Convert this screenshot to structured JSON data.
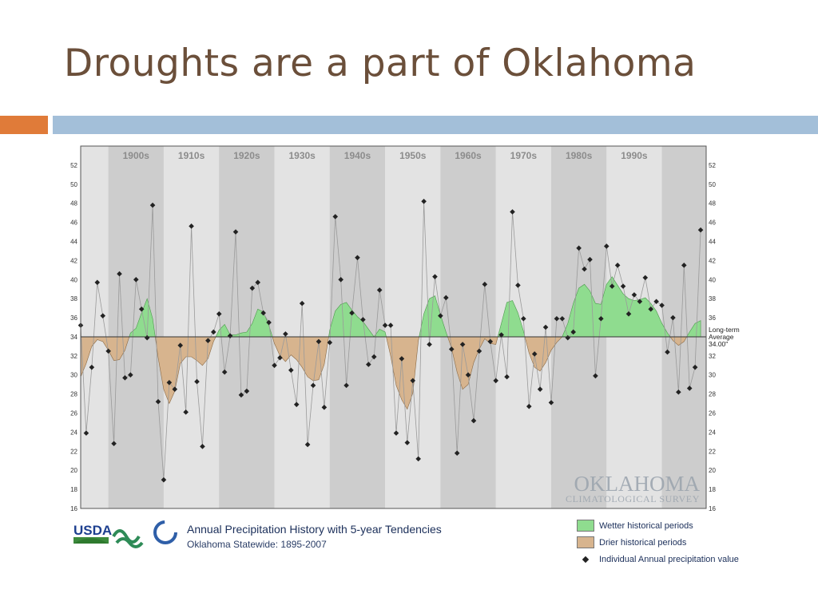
{
  "slide": {
    "title": "Droughts are a part of Oklahoma"
  },
  "colors": {
    "wet": "#8fdc8f",
    "dry": "#d7b48e",
    "title": "#6b4f3a",
    "accent": "#e07b39",
    "rule": "#a3bfd9",
    "text_blue": "#1b2f5a"
  },
  "branding": {
    "usda": "USDA",
    "ocs": "OKLAHOMA",
    "ocs_sub": "CLIMATOLOGICAL SURVEY"
  },
  "chart_data": {
    "type": "line",
    "title": "Annual Precipitation History with 5-year Tendencies",
    "subtitle": "Oklahoma Statewide:  1895-2007",
    "ylim": [
      16,
      54
    ],
    "ytick_step": 2,
    "xlim": [
      1895,
      2008
    ],
    "grid": false,
    "decades": [
      "1900s",
      "1910s",
      "1920s",
      "1930s",
      "1940s",
      "1950s",
      "1960s",
      "1970s",
      "1980s",
      "1990s"
    ],
    "baseline": {
      "value": 34.0,
      "label_line1": "Long-term",
      "label_line2": "Average",
      "label_value": "34.00\""
    },
    "legend": {
      "placement": "bottom-right",
      "wet": "Wetter historical periods",
      "dry": "Drier historical periods",
      "points": "Individual Annual precipitation value"
    },
    "annual": [
      {
        "x": 1895,
        "y": 35.2
      },
      {
        "x": 1896,
        "y": 23.9
      },
      {
        "x": 1897,
        "y": 30.8
      },
      {
        "x": 1898,
        "y": 39.7
      },
      {
        "x": 1899,
        "y": 36.2
      },
      {
        "x": 1900,
        "y": 32.5
      },
      {
        "x": 1901,
        "y": 22.8
      },
      {
        "x": 1902,
        "y": 40.6
      },
      {
        "x": 1903,
        "y": 29.7
      },
      {
        "x": 1904,
        "y": 30.0
      },
      {
        "x": 1905,
        "y": 40.0
      },
      {
        "x": 1906,
        "y": 36.9
      },
      {
        "x": 1907,
        "y": 33.9
      },
      {
        "x": 1908,
        "y": 47.8
      },
      {
        "x": 1909,
        "y": 27.2
      },
      {
        "x": 1910,
        "y": 19.0
      },
      {
        "x": 1911,
        "y": 29.2
      },
      {
        "x": 1912,
        "y": 28.5
      },
      {
        "x": 1913,
        "y": 33.1
      },
      {
        "x": 1914,
        "y": 26.1
      },
      {
        "x": 1915,
        "y": 45.6
      },
      {
        "x": 1916,
        "y": 29.3
      },
      {
        "x": 1917,
        "y": 22.5
      },
      {
        "x": 1918,
        "y": 33.6
      },
      {
        "x": 1919,
        "y": 34.5
      },
      {
        "x": 1920,
        "y": 36.4
      },
      {
        "x": 1921,
        "y": 30.3
      },
      {
        "x": 1922,
        "y": 34.1
      },
      {
        "x": 1923,
        "y": 45.0
      },
      {
        "x": 1924,
        "y": 27.9
      },
      {
        "x": 1925,
        "y": 28.3
      },
      {
        "x": 1926,
        "y": 39.1
      },
      {
        "x": 1927,
        "y": 39.7
      },
      {
        "x": 1928,
        "y": 36.5
      },
      {
        "x": 1929,
        "y": 35.5
      },
      {
        "x": 1930,
        "y": 31.0
      },
      {
        "x": 1931,
        "y": 31.8
      },
      {
        "x": 1932,
        "y": 34.3
      },
      {
        "x": 1933,
        "y": 30.5
      },
      {
        "x": 1934,
        "y": 26.9
      },
      {
        "x": 1935,
        "y": 37.5
      },
      {
        "x": 1936,
        "y": 22.7
      },
      {
        "x": 1937,
        "y": 28.9
      },
      {
        "x": 1938,
        "y": 33.5
      },
      {
        "x": 1939,
        "y": 26.6
      },
      {
        "x": 1940,
        "y": 33.4
      },
      {
        "x": 1941,
        "y": 46.6
      },
      {
        "x": 1942,
        "y": 40.0
      },
      {
        "x": 1943,
        "y": 28.9
      },
      {
        "x": 1944,
        "y": 36.5
      },
      {
        "x": 1945,
        "y": 42.3
      },
      {
        "x": 1946,
        "y": 35.8
      },
      {
        "x": 1947,
        "y": 31.1
      },
      {
        "x": 1948,
        "y": 31.9
      },
      {
        "x": 1949,
        "y": 38.9
      },
      {
        "x": 1950,
        "y": 35.2
      },
      {
        "x": 1951,
        "y": 35.2
      },
      {
        "x": 1952,
        "y": 23.9
      },
      {
        "x": 1953,
        "y": 31.7
      },
      {
        "x": 1954,
        "y": 22.9
      },
      {
        "x": 1955,
        "y": 29.4
      },
      {
        "x": 1956,
        "y": 21.2
      },
      {
        "x": 1957,
        "y": 48.2
      },
      {
        "x": 1958,
        "y": 33.2
      },
      {
        "x": 1959,
        "y": 40.3
      },
      {
        "x": 1960,
        "y": 36.2
      },
      {
        "x": 1961,
        "y": 38.1
      },
      {
        "x": 1962,
        "y": 32.7
      },
      {
        "x": 1963,
        "y": 21.8
      },
      {
        "x": 1964,
        "y": 33.2
      },
      {
        "x": 1965,
        "y": 30.0
      },
      {
        "x": 1966,
        "y": 25.2
      },
      {
        "x": 1967,
        "y": 32.5
      },
      {
        "x": 1968,
        "y": 39.5
      },
      {
        "x": 1969,
        "y": 33.5
      },
      {
        "x": 1970,
        "y": 29.4
      },
      {
        "x": 1971,
        "y": 34.2
      },
      {
        "x": 1972,
        "y": 29.8
      },
      {
        "x": 1973,
        "y": 47.1
      },
      {
        "x": 1974,
        "y": 39.4
      },
      {
        "x": 1975,
        "y": 35.9
      },
      {
        "x": 1976,
        "y": 26.7
      },
      {
        "x": 1977,
        "y": 32.2
      },
      {
        "x": 1978,
        "y": 28.5
      },
      {
        "x": 1979,
        "y": 35.0
      },
      {
        "x": 1980,
        "y": 27.1
      },
      {
        "x": 1981,
        "y": 35.9
      },
      {
        "x": 1982,
        "y": 35.9
      },
      {
        "x": 1983,
        "y": 33.9
      },
      {
        "x": 1984,
        "y": 34.5
      },
      {
        "x": 1985,
        "y": 43.3
      },
      {
        "x": 1986,
        "y": 41.1
      },
      {
        "x": 1987,
        "y": 42.1
      },
      {
        "x": 1988,
        "y": 29.9
      },
      {
        "x": 1989,
        "y": 35.9
      },
      {
        "x": 1990,
        "y": 43.5
      },
      {
        "x": 1991,
        "y": 39.3
      },
      {
        "x": 1992,
        "y": 41.5
      },
      {
        "x": 1993,
        "y": 39.3
      },
      {
        "x": 1994,
        "y": 36.4
      },
      {
        "x": 1995,
        "y": 38.4
      },
      {
        "x": 1996,
        "y": 37.7
      },
      {
        "x": 1997,
        "y": 40.2
      },
      {
        "x": 1998,
        "y": 36.9
      },
      {
        "x": 1999,
        "y": 37.7
      },
      {
        "x": 2000,
        "y": 37.3
      },
      {
        "x": 2001,
        "y": 32.4
      },
      {
        "x": 2002,
        "y": 36.0
      },
      {
        "x": 2003,
        "y": 28.2
      },
      {
        "x": 2004,
        "y": 41.5
      },
      {
        "x": 2005,
        "y": 28.6
      },
      {
        "x": 2006,
        "y": 30.8
      },
      {
        "x": 2007,
        "y": 45.2
      }
    ],
    "tendency": [
      {
        "x": 1895,
        "y": 29.8
      },
      {
        "x": 1896,
        "y": 31.2
      },
      {
        "x": 1897,
        "y": 33.0
      },
      {
        "x": 1898,
        "y": 33.7
      },
      {
        "x": 1899,
        "y": 33.5
      },
      {
        "x": 1900,
        "y": 32.6
      },
      {
        "x": 1901,
        "y": 31.5
      },
      {
        "x": 1902,
        "y": 31.6
      },
      {
        "x": 1903,
        "y": 32.6
      },
      {
        "x": 1904,
        "y": 34.4
      },
      {
        "x": 1905,
        "y": 34.9
      },
      {
        "x": 1906,
        "y": 36.5
      },
      {
        "x": 1907,
        "y": 38.0
      },
      {
        "x": 1908,
        "y": 35.9
      },
      {
        "x": 1909,
        "y": 31.8
      },
      {
        "x": 1910,
        "y": 28.5
      },
      {
        "x": 1911,
        "y": 27.0
      },
      {
        "x": 1912,
        "y": 28.3
      },
      {
        "x": 1913,
        "y": 31.2
      },
      {
        "x": 1914,
        "y": 31.9
      },
      {
        "x": 1915,
        "y": 31.9
      },
      {
        "x": 1916,
        "y": 31.5
      },
      {
        "x": 1917,
        "y": 31.0
      },
      {
        "x": 1918,
        "y": 31.7
      },
      {
        "x": 1919,
        "y": 33.5
      },
      {
        "x": 1920,
        "y": 34.7
      },
      {
        "x": 1921,
        "y": 35.3
      },
      {
        "x": 1922,
        "y": 34.2
      },
      {
        "x": 1923,
        "y": 34.2
      },
      {
        "x": 1924,
        "y": 34.4
      },
      {
        "x": 1925,
        "y": 34.5
      },
      {
        "x": 1926,
        "y": 35.4
      },
      {
        "x": 1927,
        "y": 36.9
      },
      {
        "x": 1928,
        "y": 36.6
      },
      {
        "x": 1929,
        "y": 35.2
      },
      {
        "x": 1930,
        "y": 33.3
      },
      {
        "x": 1931,
        "y": 32.0
      },
      {
        "x": 1932,
        "y": 31.4
      },
      {
        "x": 1933,
        "y": 32.1
      },
      {
        "x": 1934,
        "y": 31.6
      },
      {
        "x": 1935,
        "y": 30.8
      },
      {
        "x": 1936,
        "y": 29.8
      },
      {
        "x": 1937,
        "y": 29.4
      },
      {
        "x": 1938,
        "y": 29.5
      },
      {
        "x": 1939,
        "y": 31.1
      },
      {
        "x": 1940,
        "y": 34.7
      },
      {
        "x": 1941,
        "y": 36.7
      },
      {
        "x": 1942,
        "y": 37.4
      },
      {
        "x": 1943,
        "y": 37.6
      },
      {
        "x": 1944,
        "y": 36.8
      },
      {
        "x": 1945,
        "y": 36.1
      },
      {
        "x": 1946,
        "y": 35.6
      },
      {
        "x": 1947,
        "y": 34.8
      },
      {
        "x": 1948,
        "y": 34.0
      },
      {
        "x": 1949,
        "y": 34.8
      },
      {
        "x": 1950,
        "y": 34.5
      },
      {
        "x": 1951,
        "y": 32.0
      },
      {
        "x": 1952,
        "y": 28.9
      },
      {
        "x": 1953,
        "y": 27.4
      },
      {
        "x": 1954,
        "y": 26.4
      },
      {
        "x": 1955,
        "y": 28.1
      },
      {
        "x": 1956,
        "y": 33.6
      },
      {
        "x": 1957,
        "y": 36.4
      },
      {
        "x": 1958,
        "y": 38.0
      },
      {
        "x": 1959,
        "y": 38.3
      },
      {
        "x": 1960,
        "y": 36.3
      },
      {
        "x": 1961,
        "y": 34.5
      },
      {
        "x": 1962,
        "y": 32.8
      },
      {
        "x": 1963,
        "y": 30.3
      },
      {
        "x": 1964,
        "y": 28.5
      },
      {
        "x": 1965,
        "y": 29.0
      },
      {
        "x": 1966,
        "y": 31.3
      },
      {
        "x": 1967,
        "y": 32.7
      },
      {
        "x": 1968,
        "y": 33.8
      },
      {
        "x": 1969,
        "y": 33.3
      },
      {
        "x": 1970,
        "y": 33.2
      },
      {
        "x": 1971,
        "y": 35.4
      },
      {
        "x": 1972,
        "y": 37.6
      },
      {
        "x": 1973,
        "y": 37.8
      },
      {
        "x": 1974,
        "y": 36.5
      },
      {
        "x": 1975,
        "y": 34.6
      },
      {
        "x": 1976,
        "y": 32.3
      },
      {
        "x": 1977,
        "y": 30.8
      },
      {
        "x": 1978,
        "y": 30.4
      },
      {
        "x": 1979,
        "y": 31.3
      },
      {
        "x": 1980,
        "y": 32.6
      },
      {
        "x": 1981,
        "y": 33.4
      },
      {
        "x": 1982,
        "y": 34.0
      },
      {
        "x": 1983,
        "y": 35.4
      },
      {
        "x": 1984,
        "y": 37.5
      },
      {
        "x": 1985,
        "y": 39.1
      },
      {
        "x": 1986,
        "y": 39.5
      },
      {
        "x": 1987,
        "y": 38.8
      },
      {
        "x": 1988,
        "y": 37.5
      },
      {
        "x": 1989,
        "y": 37.4
      },
      {
        "x": 1990,
        "y": 39.5
      },
      {
        "x": 1991,
        "y": 40.3
      },
      {
        "x": 1992,
        "y": 39.4
      },
      {
        "x": 1993,
        "y": 38.5
      },
      {
        "x": 1994,
        "y": 38.0
      },
      {
        "x": 1995,
        "y": 37.8
      },
      {
        "x": 1996,
        "y": 37.9
      },
      {
        "x": 1997,
        "y": 38.1
      },
      {
        "x": 1998,
        "y": 37.5
      },
      {
        "x": 1999,
        "y": 36.7
      },
      {
        "x": 2000,
        "y": 35.4
      },
      {
        "x": 2001,
        "y": 34.4
      },
      {
        "x": 2002,
        "y": 33.6
      },
      {
        "x": 2003,
        "y": 33.1
      },
      {
        "x": 2004,
        "y": 33.5
      },
      {
        "x": 2005,
        "y": 34.5
      },
      {
        "x": 2006,
        "y": 35.4
      },
      {
        "x": 2007,
        "y": 35.7
      }
    ]
  }
}
